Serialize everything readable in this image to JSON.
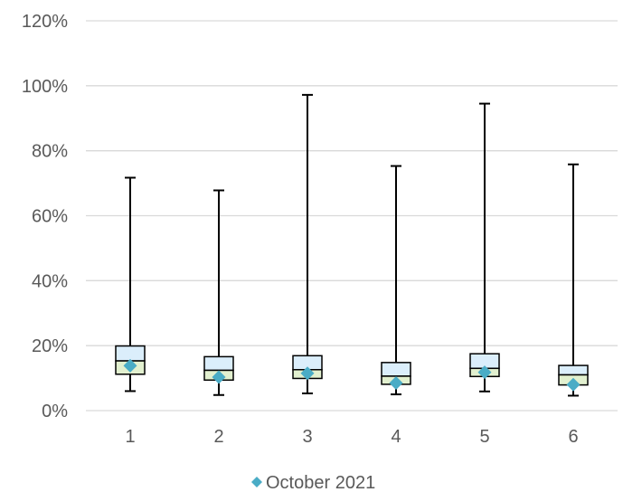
{
  "chart_data": {
    "type": "box",
    "categories": [
      "1",
      "2",
      "3",
      "4",
      "5",
      "6"
    ],
    "ylim": [
      0,
      120
    ],
    "yticks": [
      "0%",
      "20%",
      "40%",
      "60%",
      "80%",
      "100%",
      "120%"
    ],
    "grid": true,
    "legend_placement": "bottom-center",
    "colors": {
      "upper_box": "#dbeefb",
      "lower_box": "#e2f0cf",
      "marker": "#4aacc6",
      "gridline": "#d9d9d9",
      "whisker": "#000000"
    },
    "series": [
      {
        "name": "October 2021",
        "marker": "diamond",
        "values": [
          13.8,
          10.3,
          11.5,
          8.5,
          11.8,
          8.0
        ]
      }
    ],
    "boxes": [
      {
        "min": 6.0,
        "q1": 11.2,
        "median": 15.3,
        "q3": 19.9,
        "max": 71.7
      },
      {
        "min": 4.8,
        "q1": 9.4,
        "median": 12.4,
        "q3": 16.6,
        "max": 67.8
      },
      {
        "min": 5.3,
        "q1": 9.9,
        "median": 12.6,
        "q3": 16.9,
        "max": 97.2
      },
      {
        "min": 5.0,
        "q1": 8.1,
        "median": 10.6,
        "q3": 14.8,
        "max": 75.3
      },
      {
        "min": 5.9,
        "q1": 10.5,
        "median": 13.0,
        "q3": 17.5,
        "max": 94.5
      },
      {
        "min": 4.6,
        "q1": 7.9,
        "median": 11.0,
        "q3": 13.9,
        "max": 75.8
      }
    ]
  }
}
